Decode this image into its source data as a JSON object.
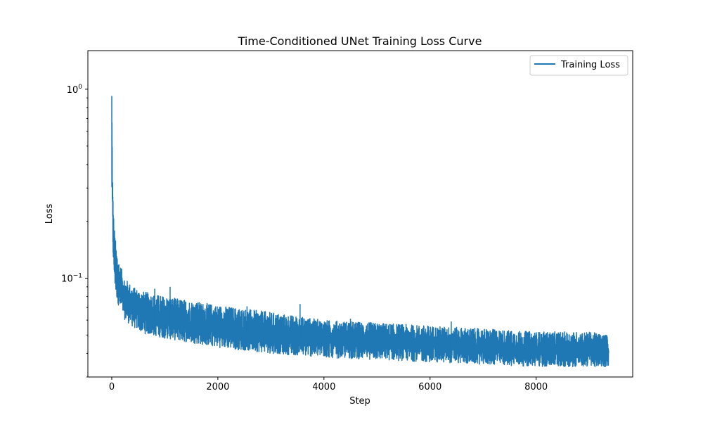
{
  "chart_data": {
    "type": "line",
    "title": "Time-Conditioned UNet Training Loss Curve",
    "xlabel": "Step",
    "ylabel": "Loss",
    "yscale": "log",
    "xlim": [
      -450,
      9820
    ],
    "ylim": [
      0.03,
      1.6
    ],
    "xticks": [
      {
        "value": 0,
        "label": "0"
      },
      {
        "value": 2000,
        "label": "2000"
      },
      {
        "value": 4000,
        "label": "4000"
      },
      {
        "value": 6000,
        "label": "6000"
      },
      {
        "value": 8000,
        "label": "8000"
      }
    ],
    "yticks_major": [
      {
        "value": 0.1,
        "base": "10",
        "exp": "−1"
      },
      {
        "value": 1,
        "base": "10",
        "exp": "0"
      }
    ],
    "grid": false,
    "legend_position": "top-right",
    "series": [
      {
        "name": "Training Loss",
        "color": "#1f77b4",
        "envelope": {
          "x": [
            0,
            5,
            10,
            20,
            40,
            80,
            150,
            250,
            400,
            600,
            1000,
            2000,
            3000,
            4000,
            5000,
            6000,
            7000,
            8000,
            9000,
            9370
          ],
          "y_low": [
            0.25,
            0.22,
            0.18,
            0.14,
            0.1,
            0.08,
            0.068,
            0.06,
            0.055,
            0.051,
            0.048,
            0.043,
            0.04,
            0.038,
            0.037,
            0.036,
            0.035,
            0.034,
            0.034,
            0.034
          ],
          "y_high": [
            1.25,
            0.8,
            0.5,
            0.3,
            0.2,
            0.15,
            0.12,
            0.1,
            0.09,
            0.085,
            0.08,
            0.072,
            0.066,
            0.06,
            0.058,
            0.056,
            0.054,
            0.052,
            0.052,
            0.05
          ]
        },
        "spikes": [
          {
            "x": 1100,
            "y": 0.09
          },
          {
            "x": 3550,
            "y": 0.073
          },
          {
            "x": 6400,
            "y": 0.059
          },
          {
            "x": 810,
            "y": 0.088
          },
          {
            "x": 2550,
            "y": 0.071
          },
          {
            "x": 4500,
            "y": 0.061
          }
        ]
      }
    ]
  }
}
